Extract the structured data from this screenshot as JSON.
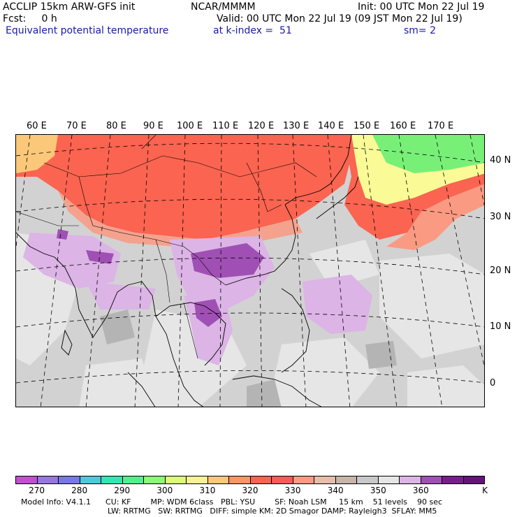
{
  "header": {
    "model_line": "ACCLIP 15km ARW-GFS init",
    "center_line": "NCAR/MMMM",
    "init_line": "Init: 00 UTC Mon 22 Jul 19",
    "fcst_line": "Fcst:     0 h",
    "valid_line": "Valid: 00 UTC Mon 22 Jul 19 (09 JST Mon 22 Jul 19)",
    "field_name": "Equivalent potential temperature",
    "level_line": "at k-index =  51",
    "smooth_line": "sm= 2"
  },
  "map": {
    "lon_labels": [
      "60 E",
      "70 E",
      "80 E",
      "90 E",
      "100 E",
      "110 E",
      "120 E",
      "130 E",
      "140 E",
      "150 E",
      "160 E",
      "170 E"
    ],
    "lat_labels": [
      "40 N",
      "30 N",
      "20 N",
      "10 N",
      "0"
    ],
    "colors": {
      "ocean_gray": "#d2d2d2",
      "warm_red": "#fa6450",
      "salmon": "#fa9a82",
      "purple": "#a050b4",
      "light_purple": "#dcb4e6",
      "green": "#78f078",
      "yellow": "#fafa96"
    }
  },
  "colorbar": {
    "colors": [
      "#c050d0",
      "#9678dc",
      "#7878e6",
      "#50c8dc",
      "#32e6b4",
      "#50f08c",
      "#8cfa78",
      "#dcfa78",
      "#faf096",
      "#fac878",
      "#fa9664",
      "#fa6450",
      "#fa5a5a",
      "#fa9a82",
      "#e6beaa",
      "#c8b4aa",
      "#c8c8c8",
      "#e6e6e6",
      "#dcb4e6",
      "#a050b4",
      "#781e8c",
      "#641478"
    ],
    "tick_labels": [
      "270",
      "280",
      "290",
      "300",
      "310",
      "320",
      "330",
      "340",
      "350",
      "360"
    ],
    "unit": "K"
  },
  "footer": {
    "line1": "Model Info: V4.1.1      CU: KF        MP: WDM 6class   PBL: YSU        SF: Noah LSM     15 km    51 levels    90 sec",
    "line2": "LW: RRTMG   SW: RRTMG   DIFF: simple KM: 2D Smagor DAMP: Rayleigh3  SFLAY: MM5"
  }
}
